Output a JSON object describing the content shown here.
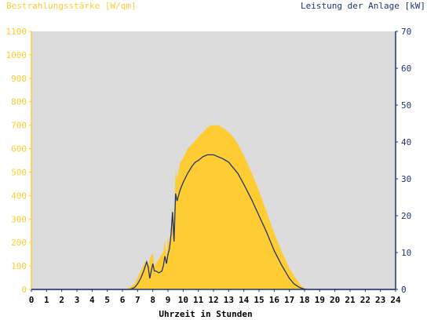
{
  "chart_data": {
    "type": "area",
    "left_axis_title": "Bestrahlungsstärke [W/qm]",
    "right_axis_title": "Leistung der Anlage [kW]",
    "xlabel": "Uhrzeit in Stunden",
    "xlim": [
      0,
      24
    ],
    "ylim_left": [
      0,
      1100
    ],
    "ylim_right": [
      0,
      70
    ],
    "x_ticks": [
      "0",
      "1",
      "2",
      "3",
      "4",
      "5",
      "6",
      "7",
      "8",
      "9",
      "10",
      "11",
      "12",
      "13",
      "14",
      "15",
      "16",
      "17",
      "18",
      "19",
      "20",
      "21",
      "22",
      "23",
      "24"
    ],
    "y_ticks_left": [
      "0",
      "100",
      "200",
      "300",
      "400",
      "500",
      "600",
      "700",
      "800",
      "900",
      "1000",
      "1100"
    ],
    "y_ticks_right": [
      "0",
      "10",
      "20",
      "30",
      "40",
      "50",
      "60",
      "70"
    ],
    "colors": {
      "irradiance": "#ffcc33",
      "power": "#1f3570",
      "plot_bg": "#dcdcdc"
    },
    "series": [
      {
        "axis": "left",
        "x": [
          0,
          6.2,
          6.5,
          6.8,
          7.0,
          7.3,
          7.5,
          7.7,
          7.85,
          8.0,
          8.1,
          8.3,
          8.5,
          8.7,
          8.8,
          8.9,
          9.0,
          9.1,
          9.2,
          9.3,
          9.4,
          9.5,
          9.6,
          9.8,
          10.0,
          10.3,
          10.6,
          11.0,
          11.3,
          11.6,
          11.8,
          12.0,
          12.3,
          12.6,
          13.0,
          13.3,
          13.6,
          14.0,
          14.5,
          15.0,
          15.5,
          16.0,
          16.5,
          17.0,
          17.5,
          17.8,
          18.0,
          18.3,
          18.5,
          24
        ],
        "y": [
          0,
          0,
          10,
          25,
          50,
          90,
          120,
          100,
          140,
          155,
          100,
          120,
          140,
          160,
          210,
          140,
          230,
          190,
          250,
          350,
          300,
          510,
          470,
          540,
          560,
          600,
          620,
          650,
          670,
          690,
          700,
          700,
          700,
          690,
          670,
          650,
          620,
          570,
          500,
          420,
          330,
          240,
          160,
          90,
          40,
          15,
          5,
          0,
          0,
          0
        ]
      },
      {
        "axis": "right",
        "x": [
          0,
          6.5,
          6.8,
          7.0,
          7.2,
          7.4,
          7.6,
          7.7,
          7.8,
          7.9,
          8.0,
          8.1,
          8.2,
          8.4,
          8.6,
          8.7,
          8.8,
          8.9,
          9.0,
          9.1,
          9.2,
          9.3,
          9.4,
          9.5,
          9.6,
          9.8,
          10.0,
          10.3,
          10.6,
          10.8,
          11.0,
          11.3,
          11.6,
          12.0,
          12.3,
          12.6,
          13.0,
          13.3,
          13.6,
          14.0,
          14.5,
          15.0,
          15.5,
          16.0,
          16.5,
          17.0,
          17.3,
          17.6,
          17.8,
          18.0,
          18.2,
          18.5,
          24
        ],
        "y": [
          0,
          0,
          0.5,
          1.5,
          3,
          5,
          7.5,
          6,
          3,
          5,
          7,
          5,
          5,
          4.5,
          5,
          6.5,
          9,
          7,
          9.5,
          11,
          15,
          21,
          13,
          26,
          24,
          27,
          29,
          31.5,
          33.5,
          34.5,
          35,
          36,
          36.5,
          36.5,
          36,
          35.5,
          34.5,
          33,
          31.5,
          28.5,
          24.5,
          20,
          15.5,
          10.5,
          6.5,
          3,
          1.5,
          0.7,
          0.3,
          0.1,
          0,
          0,
          0
        ]
      }
    ]
  }
}
